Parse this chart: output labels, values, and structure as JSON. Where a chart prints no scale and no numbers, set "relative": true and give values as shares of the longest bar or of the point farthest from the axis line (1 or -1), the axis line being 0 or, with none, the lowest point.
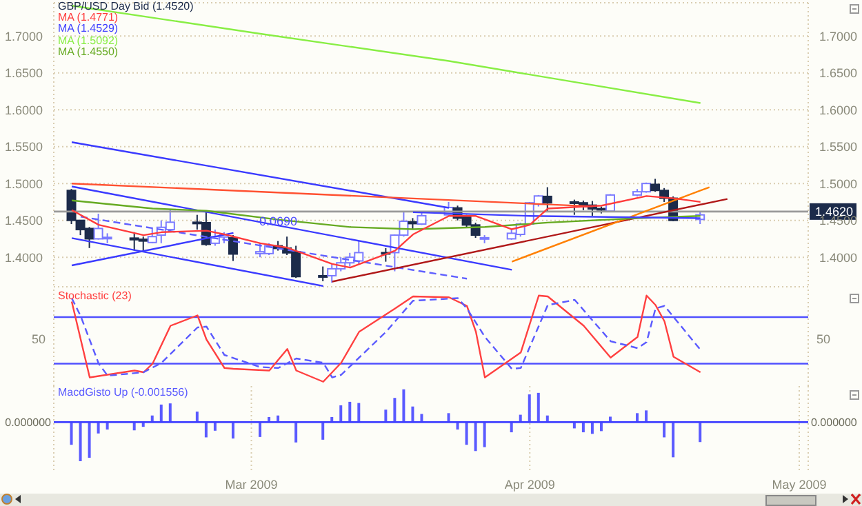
{
  "chart_data": [
    {
      "type": "candlestick",
      "tick_labels": "y",
      "grid": true,
      "legend": "top left",
      "xlim": [
        "2009-02-07",
        "2009-05-02"
      ],
      "xticks": [
        {
          "value": "2009-03-01",
          "label": null
        },
        {
          "value": "2009-04-01",
          "label": null
        },
        {
          "value": "2009-05-01",
          "label": null
        }
      ],
      "ylim": [
        1.36,
        1.745
      ],
      "yticks": [
        {
          "value": 1.4,
          "label": "1.4000"
        },
        {
          "value": 1.45,
          "label": "1.4500"
        },
        {
          "value": 1.5,
          "label": "1.5000"
        },
        {
          "value": 1.55,
          "label": "1.5500"
        },
        {
          "value": 1.6,
          "label": "1.6000"
        },
        {
          "value": 1.65,
          "label": "1.6500"
        },
        {
          "value": 1.7,
          "label": "1.7000"
        }
      ],
      "y2lim": [
        1.36,
        1.745
      ],
      "y2ticks": [
        {
          "value": 1.4,
          "label": "1.4000"
        },
        {
          "value": 1.45,
          "label": "1.4500"
        },
        {
          "value": 1.5,
          "label": "1.5000"
        },
        {
          "value": 1.55,
          "label": "1.5500"
        },
        {
          "value": 1.6,
          "label": "1.6000"
        },
        {
          "value": 1.65,
          "label": "1.6500"
        },
        {
          "value": 1.7,
          "label": "1.7000"
        }
      ],
      "ref_lines": [
        {
          "axis": "y",
          "value": 1.462,
          "label": "1.4620",
          "color": "#999999"
        }
      ],
      "annotations": [
        {
          "text": "0.0690",
          "x": "2009-03-04",
          "y": 1.449
        }
      ],
      "series": [
        {
          "type": "line",
          "color": "#3a3aff",
          "x": [
            "2009-02-09",
            "2009-03-23"
          ],
          "values": [
            1.556,
            1.467
          ]
        },
        {
          "type": "line",
          "color": "#3a3aff",
          "x": [
            "2009-02-09",
            "2009-03-30"
          ],
          "values": [
            1.496,
            1.383
          ]
        },
        {
          "type": "line",
          "color": "#3a3aff",
          "x": [
            "2009-02-09",
            "2009-03-09"
          ],
          "values": [
            1.426,
            1.361
          ]
        },
        {
          "type": "line",
          "color": "#3a3aff",
          "x": [
            "2009-02-09",
            "2009-02-27"
          ],
          "values": [
            1.389,
            1.433
          ]
        },
        {
          "type": "line",
          "color": "#6060ff",
          "line_style": "dashed",
          "x": [
            "2009-02-10",
            "2009-03-25"
          ],
          "values": [
            1.455,
            1.371
          ]
        },
        {
          "type": "line",
          "color": "#ff5030",
          "x": [
            "2009-02-09",
            "2009-04-08"
          ],
          "values": [
            1.5,
            1.469
          ]
        },
        {
          "type": "line",
          "color": "#b01818",
          "x": [
            "2009-03-10",
            "2009-04-23"
          ],
          "values": [
            1.367,
            1.479
          ]
        },
        {
          "type": "line",
          "color": "#ff8000",
          "x": [
            "2009-03-30",
            "2009-04-21"
          ],
          "values": [
            1.394,
            1.495
          ]
        },
        {
          "type": "line",
          "name": "MA (1.4550)",
          "color": "#66aa22",
          "x": [
            "2009-02-09",
            "2009-02-18",
            "2009-02-24",
            "2009-03-04",
            "2009-03-12",
            "2009-03-19",
            "2009-03-27",
            "2009-04-03",
            "2009-04-13",
            "2009-04-20"
          ],
          "values": [
            1.477,
            1.466,
            1.463,
            1.451,
            1.441,
            1.438,
            1.441,
            1.447,
            1.453,
            1.456
          ]
        },
        {
          "type": "line",
          "name": "MA (1.5092)",
          "color": "#88ee44",
          "x": [
            "2009-02-09",
            "2009-03-02",
            "2009-03-23",
            "2009-04-20"
          ],
          "values": [
            1.741,
            1.703,
            1.666,
            1.609
          ]
        },
        {
          "type": "line",
          "name": "MA (1.4529)",
          "color": "#4040ff",
          "x": [
            "2009-03-19",
            "2009-04-01",
            "2009-04-20"
          ],
          "values": [
            1.461,
            1.456,
            1.453
          ]
        },
        {
          "type": "line",
          "name": "MA (1.4771)",
          "color": "#ff3b3b",
          "x": [
            "2009-02-09",
            "2009-02-12",
            "2009-02-17",
            "2009-02-19",
            "2009-02-24",
            "2009-02-26",
            "2009-03-02",
            "2009-03-05",
            "2009-03-10",
            "2009-03-12",
            "2009-03-17",
            "2009-03-19",
            "2009-03-23",
            "2009-03-26",
            "2009-03-30",
            "2009-04-01",
            "2009-04-03",
            "2009-04-09",
            "2009-04-14",
            "2009-04-17",
            "2009-04-20"
          ],
          "values": [
            1.464,
            1.444,
            1.43,
            1.434,
            1.436,
            1.431,
            1.419,
            1.413,
            1.391,
            1.386,
            1.409,
            1.431,
            1.456,
            1.456,
            1.438,
            1.444,
            1.466,
            1.47,
            1.483,
            1.48,
            1.475
          ]
        },
        {
          "type": "candlestick",
          "name": "GBP/USD Day Bid (1.4520)",
          "color": "#1c2b4a",
          "x": [
            "2009-02-09",
            "2009-02-10",
            "2009-02-11",
            "2009-02-12",
            "2009-02-13",
            "2009-02-16",
            "2009-02-17",
            "2009-02-18",
            "2009-02-19",
            "2009-02-20",
            "2009-02-23",
            "2009-02-24",
            "2009-02-25",
            "2009-02-26",
            "2009-02-27",
            "2009-03-02",
            "2009-03-03",
            "2009-03-04",
            "2009-03-05",
            "2009-03-06",
            "2009-03-09",
            "2009-03-10",
            "2009-03-11",
            "2009-03-12",
            "2009-03-13",
            "2009-03-16",
            "2009-03-17",
            "2009-03-18",
            "2009-03-19",
            "2009-03-20",
            "2009-03-23",
            "2009-03-24",
            "2009-03-25",
            "2009-03-26",
            "2009-03-27",
            "2009-03-30",
            "2009-03-31",
            "2009-04-01",
            "2009-04-02",
            "2009-04-03",
            "2009-04-06",
            "2009-04-07",
            "2009-04-08",
            "2009-04-09",
            "2009-04-10",
            "2009-04-13",
            "2009-04-14",
            "2009-04-15",
            "2009-04-16",
            "2009-04-17",
            "2009-04-20"
          ],
          "ohlc": [
            [
              1.4906,
              1.4925,
              1.445,
              1.45
            ],
            [
              1.45,
              1.45,
              1.43,
              1.4375
            ],
            [
              1.439,
              1.441,
              1.4125,
              1.425
            ],
            [
              1.425,
              1.459,
              1.424,
              1.439
            ],
            [
              1.4255,
              1.4325,
              1.419,
              1.427
            ],
            [
              1.426,
              1.434,
              1.409,
              1.4238
            ],
            [
              1.4244,
              1.428,
              1.4075,
              1.422
            ],
            [
              1.42,
              1.439,
              1.419,
              1.428
            ],
            [
              1.43,
              1.45,
              1.419,
              1.4406
            ],
            [
              1.4375,
              1.4656,
              1.434,
              1.4475
            ],
            [
              1.4475,
              1.4575,
              1.4375,
              1.4463
            ],
            [
              1.4469,
              1.4613,
              1.4156,
              1.4175
            ],
            [
              1.419,
              1.4375,
              1.4156,
              1.428
            ],
            [
              1.4275,
              1.434,
              1.419,
              1.431
            ],
            [
              1.4263,
              1.43,
              1.395,
              1.4044
            ],
            [
              1.405,
              1.419,
              1.4,
              1.4075
            ],
            [
              1.405,
              1.419,
              1.403,
              1.4156
            ],
            [
              1.4156,
              1.422,
              1.409,
              1.412
            ],
            [
              1.4125,
              1.428,
              1.403,
              1.406
            ],
            [
              1.4075,
              1.4156,
              1.372,
              1.3738
            ],
            [
              1.375,
              1.3875,
              1.3675,
              1.374
            ],
            [
              1.375,
              1.3906,
              1.3656,
              1.3844
            ],
            [
              1.3844,
              1.4,
              1.381,
              1.3925
            ],
            [
              1.3925,
              1.406,
              1.3875,
              1.4
            ],
            [
              1.395,
              1.4219,
              1.3906,
              1.4063
            ],
            [
              1.4063,
              1.4125,
              1.394,
              1.4056
            ],
            [
              1.4063,
              1.431,
              1.381,
              1.43
            ],
            [
              1.43,
              1.4613,
              1.428,
              1.4488
            ],
            [
              1.448,
              1.4531,
              1.4375,
              1.4456
            ],
            [
              1.445,
              1.4625,
              1.4438,
              1.4563
            ],
            [
              1.4575,
              1.475,
              1.456,
              1.4675
            ],
            [
              1.4669,
              1.47,
              1.45,
              1.4531
            ],
            [
              1.455,
              1.4575,
              1.4406,
              1.4438
            ],
            [
              1.4438,
              1.4469,
              1.4263,
              1.43
            ],
            [
              1.426,
              1.43,
              1.419,
              1.4265
            ],
            [
              1.425,
              1.4375,
              1.4238,
              1.4325
            ],
            [
              1.431,
              1.4469,
              1.428,
              1.445
            ],
            [
              1.445,
              1.475,
              1.4438,
              1.4738
            ],
            [
              1.4719,
              1.4844,
              1.4688,
              1.4831
            ],
            [
              1.4825,
              1.495,
              1.4625,
              1.4738
            ],
            [
              1.475,
              1.4781,
              1.4575,
              1.4738
            ],
            [
              1.4738,
              1.4769,
              1.4638,
              1.4688
            ],
            [
              1.4706,
              1.4763,
              1.4563,
              1.4656
            ],
            [
              1.466,
              1.4688,
              1.4594,
              1.4644
            ],
            [
              1.4625,
              1.4856,
              1.4613,
              1.4844
            ],
            [
              1.4844,
              1.4925,
              1.4825,
              1.4888
            ],
            [
              1.4888,
              1.5013,
              1.4875,
              1.5
            ],
            [
              1.4988,
              1.5063,
              1.4888,
              1.4906
            ],
            [
              1.4906,
              1.4938,
              1.475,
              1.48
            ],
            [
              1.48,
              1.4825,
              1.4488,
              1.45
            ],
            [
              1.4513,
              1.4625,
              1.445,
              1.4575
            ]
          ],
          "colors": [
            "#1c2b4a",
            "#1c2b4a",
            "#1c2b4a",
            "#7a7aff",
            "#7a7aff",
            "#1c2b4a",
            "#1c2b4a",
            "#7a7aff",
            "#7a7aff",
            "#7a7aff",
            "#1c2b4a",
            "#1c2b4a",
            "#7a7aff",
            "#7a7aff",
            "#1c2b4a",
            "#7a7aff",
            "#7a7aff",
            "#1c2b4a",
            "#1c2b4a",
            "#1c2b4a",
            "#1c2b4a",
            "#7a7aff",
            "#7a7aff",
            "#7a7aff",
            "#7a7aff",
            "#1c2b4a",
            "#7a7aff",
            "#7a7aff",
            "#1c2b4a",
            "#7a7aff",
            "#7a7aff",
            "#1c2b4a",
            "#1c2b4a",
            "#1c2b4a",
            "#7a7aff",
            "#7a7aff",
            "#7a7aff",
            "#7a7aff",
            "#7a7aff",
            "#1c2b4a",
            "#1c2b4a",
            "#1c2b4a",
            "#1c2b4a",
            "#1c2b4a",
            "#7a7aff",
            "#7a7aff",
            "#7a7aff",
            "#1c2b4a",
            "#1c2b4a",
            "#1c2b4a",
            "#7a7aff"
          ]
        }
      ]
    },
    {
      "type": "line",
      "relative": true,
      "tick_labels": false,
      "grid": "x",
      "legend": "top left",
      "xlim": [
        "2009-02-07",
        "2009-05-02"
      ],
      "xticks": [
        {
          "value": "2009-03-01",
          "label": null
        },
        {
          "value": "2009-04-01",
          "label": null
        },
        {
          "value": "2009-05-01",
          "label": null
        }
      ],
      "ref_lines": [
        {
          "axis": "y",
          "value": 0.75,
          "color": "#5050ff"
        },
        {
          "axis": "y",
          "value": 0.21,
          "color": "#5050ff"
        }
      ],
      "annotations": [
        "50",
        "50"
      ],
      "series": [
        {
          "name": "Stochastic (23)",
          "color": "#ff4040",
          "x": [
            "2009-02-09",
            "2009-02-11",
            "2009-02-16",
            "2009-02-17",
            "2009-02-18",
            "2009-02-20",
            "2009-02-23",
            "2009-02-24",
            "2009-02-26",
            "2009-02-27",
            "2009-03-03",
            "2009-03-05",
            "2009-03-06",
            "2009-03-09",
            "2009-03-11",
            "2009-03-13",
            "2009-03-17",
            "2009-03-19",
            "2009-03-23",
            "2009-03-25",
            "2009-03-26",
            "2009-03-27",
            "2009-03-31",
            "2009-04-02",
            "2009-04-03",
            "2009-04-07",
            "2009-04-10",
            "2009-04-13",
            "2009-04-14",
            "2009-04-15",
            "2009-04-16",
            "2009-04-17",
            "2009-04-20"
          ],
          "values": [
            0.93,
            0.05,
            0.13,
            0.11,
            0.21,
            0.65,
            0.77,
            0.49,
            0.16,
            0.15,
            0.13,
            0.38,
            0.13,
            0,
            0.22,
            0.58,
            0.85,
            0.99,
            0.98,
            0.88,
            0.58,
            0.05,
            0.34,
            1,
            0.99,
            0.65,
            0.28,
            0.52,
            1,
            0.89,
            0.7,
            0.29,
            0.11
          ]
        },
        {
          "color": "#5a5aff",
          "line_style": "dashed",
          "x": [
            "2009-02-09",
            "2009-02-10",
            "2009-02-12",
            "2009-02-13",
            "2009-02-17",
            "2009-02-19",
            "2009-02-23",
            "2009-02-24",
            "2009-02-26",
            "2009-03-02",
            "2009-03-04",
            "2009-03-06",
            "2009-03-09",
            "2009-03-10",
            "2009-03-11",
            "2009-03-16",
            "2009-03-19",
            "2009-03-24",
            "2009-03-25",
            "2009-03-27",
            "2009-03-30",
            "2009-03-31",
            "2009-04-03",
            "2009-04-06",
            "2009-04-10",
            "2009-04-13",
            "2009-04-14",
            "2009-04-15",
            "2009-04-16",
            "2009-04-20"
          ],
          "values": [
            0.97,
            0.76,
            0.21,
            0.07,
            0.11,
            0.22,
            0.63,
            0.64,
            0.31,
            0.17,
            0.16,
            0.27,
            0.22,
            0.05,
            0.08,
            0.58,
            0.94,
            0.97,
            0.85,
            0.52,
            0.15,
            0.16,
            0.89,
            0.95,
            0.47,
            0.39,
            0.46,
            0.85,
            0.88,
            0.37
          ]
        }
      ]
    },
    {
      "type": "bar",
      "relative": true,
      "tick_labels": "x",
      "grid": "x",
      "legend": "top left",
      "xlim": [
        "2009-02-07",
        "2009-05-02"
      ],
      "xticks": [
        {
          "value": "2009-03-01",
          "label": "Mar 2009"
        },
        {
          "value": "2009-04-01",
          "label": "Apr 2009"
        },
        {
          "value": "2009-05-01",
          "label": "May 2009"
        }
      ],
      "x": [
        "2009-02-09",
        "2009-02-10",
        "2009-02-11",
        "2009-02-12",
        "2009-02-13",
        "2009-02-16",
        "2009-02-17",
        "2009-02-18",
        "2009-02-19",
        "2009-02-20",
        "2009-02-23",
        "2009-02-24",
        "2009-02-25",
        "2009-02-26",
        "2009-02-27",
        "2009-03-02",
        "2009-03-03",
        "2009-03-04",
        "2009-03-05",
        "2009-03-06",
        "2009-03-09",
        "2009-03-10",
        "2009-03-11",
        "2009-03-12",
        "2009-03-13",
        "2009-03-16",
        "2009-03-17",
        "2009-03-18",
        "2009-03-19",
        "2009-03-20",
        "2009-03-23",
        "2009-03-24",
        "2009-03-25",
        "2009-03-26",
        "2009-03-27",
        "2009-03-30",
        "2009-03-31",
        "2009-04-01",
        "2009-04-02",
        "2009-04-03",
        "2009-04-06",
        "2009-04-07",
        "2009-04-08",
        "2009-04-09",
        "2009-04-10",
        "2009-04-13",
        "2009-04-14",
        "2009-04-15",
        "2009-04-16",
        "2009-04-17",
        "2009-04-20"
      ],
      "ref_lines": [
        {
          "axis": "y",
          "value": 0,
          "label": "0.000000",
          "color": "#4040ff"
        }
      ],
      "series": [
        {
          "name": "MacdGisto Up (-0.001556)",
          "color": "#5a5aff",
          "values": [
            -0.58,
            -1,
            -0.91,
            -0.29,
            -0.19,
            -0.21,
            -0.12,
            0.17,
            0.45,
            0.48,
            0.27,
            -0.39,
            -0.22,
            null,
            -0.42,
            -0.38,
            0.13,
            0.17,
            0.01,
            -0.52,
            -0.45,
            0.13,
            0.43,
            0.52,
            0.49,
            0.32,
            0.62,
            0.84,
            0.4,
            0.21,
            0.23,
            -0.19,
            -0.58,
            -0.74,
            -0.64,
            -0.26,
            0.19,
            0.71,
            0.75,
            0.17,
            -0.16,
            -0.26,
            -0.3,
            -0.23,
            0.14,
            0.23,
            0.3,
            0,
            -0.39,
            -0.9,
            -0.51
          ]
        }
      ]
    }
  ]
}
